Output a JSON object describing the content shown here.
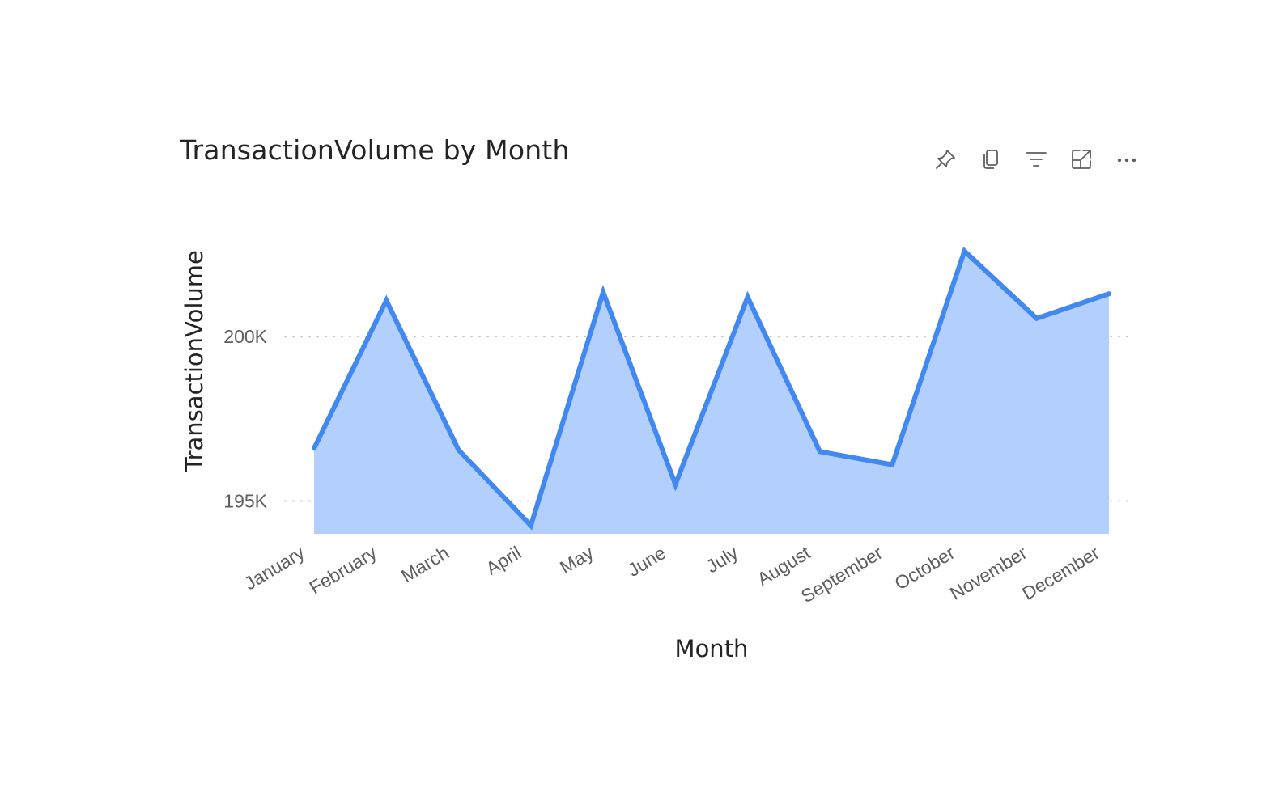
{
  "visual": {
    "title": "TransactionVolume by Month",
    "header_icons": [
      {
        "name": "pin-icon",
        "label": "Pin visual"
      },
      {
        "name": "copy-icon",
        "label": "Copy visual"
      },
      {
        "name": "filter-icon",
        "label": "Filters"
      },
      {
        "name": "focus-mode-icon",
        "label": "Focus mode"
      },
      {
        "name": "more-options-icon",
        "label": "More options"
      }
    ]
  },
  "chart_data": {
    "type": "area",
    "title": "TransactionVolume by Month",
    "xlabel": "Month",
    "ylabel": "TransactionVolume",
    "categories": [
      "January",
      "February",
      "March",
      "April",
      "May",
      "June",
      "July",
      "August",
      "September",
      "October",
      "November",
      "December"
    ],
    "series": [
      {
        "values": [
          196600,
          201100,
          196550,
          194250,
          201350,
          195500,
          201200,
          196500,
          196100,
          202600,
          200550,
          201300
        ]
      }
    ],
    "y_ticks": [
      {
        "value": 195000,
        "label": "195K"
      },
      {
        "value": 200000,
        "label": "200K"
      }
    ],
    "ylim": [
      194000,
      203200
    ],
    "grid": true,
    "legend": "none",
    "colors": {
      "line": "#4188f0",
      "area": "#b3cffb",
      "grid": "#c8c6c4",
      "text": "#605e5c",
      "title": "#252423"
    }
  }
}
